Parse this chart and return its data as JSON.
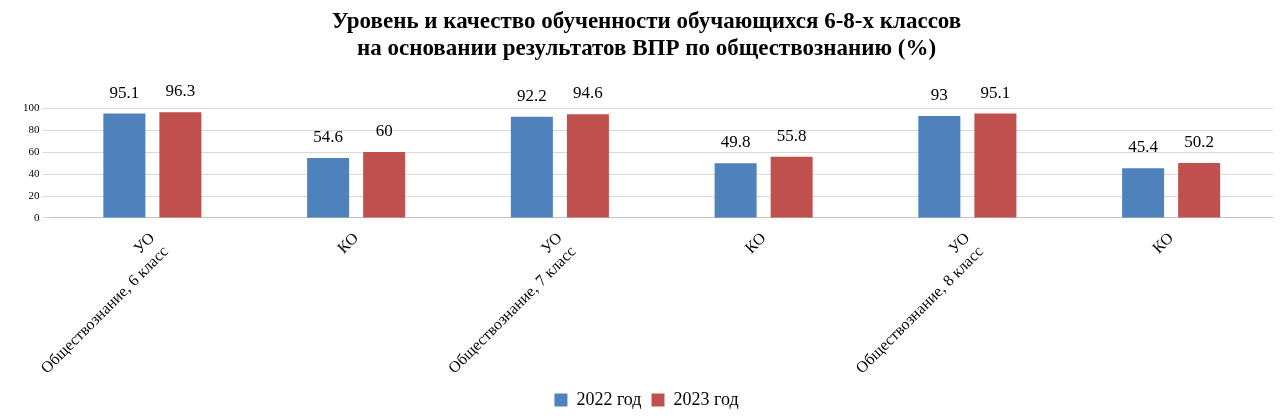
{
  "chart_data": {
    "type": "bar",
    "title": "Уровень и качество обученности обучающихся 6-8-х классов\nна основании результатов ВПР по обществознанию (%)",
    "categories": [
      "УО\nОбществознание, 6 класс",
      "КО",
      "УО\nОбществознание, 7 класс",
      "КО",
      "УО\nОбществознание, 8 класс",
      "КО"
    ],
    "series": [
      {
        "name": "2022 год",
        "color": "#4f81bd",
        "values": [
          95.1,
          54.6,
          92.2,
          49.8,
          93,
          45.4
        ]
      },
      {
        "name": "2023 год",
        "color": "#c0504d",
        "values": [
          96.3,
          60,
          94.6,
          55.8,
          95.1,
          50.2
        ]
      }
    ],
    "ylim": [
      0,
      100
    ],
    "yticks": [
      0,
      20,
      40,
      60,
      80,
      100
    ],
    "grid": "y",
    "legend": "bottom",
    "data_labels": true
  }
}
